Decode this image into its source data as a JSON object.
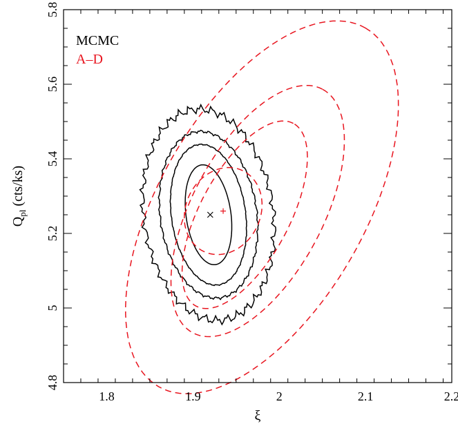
{
  "chart_data": {
    "type": "contour",
    "xlabel": "ξ",
    "ylabel": "Q",
    "ylabel_subscript": "pl",
    "ylabel_unit": "(cts/ks)",
    "xlim": [
      1.75,
      2.2
    ],
    "ylim": [
      4.8,
      5.8
    ],
    "x_ticks": [
      "1.8",
      "1.9",
      "2",
      "2.1",
      "2.2"
    ],
    "y_ticks": [
      "4.8",
      "5",
      "5.2",
      "5.4",
      "5.6",
      "5.8"
    ],
    "grid": false,
    "legend_position": "top-left",
    "series": [
      {
        "name": "MCMC",
        "color": "#000000",
        "style": "solid",
        "best_fit": {
          "x": 1.92,
          "y": 5.25,
          "marker": "x"
        },
        "contours": [
          {
            "cx": 1.918,
            "cy": 5.25,
            "rx": 0.026,
            "ry": 0.135,
            "angle_deg": 8,
            "jitter": 0
          },
          {
            "cx": 1.918,
            "cy": 5.25,
            "rx": 0.043,
            "ry": 0.19,
            "angle_deg": 8,
            "jitter": 0.12
          },
          {
            "cx": 1.918,
            "cy": 5.25,
            "rx": 0.056,
            "ry": 0.225,
            "angle_deg": 8,
            "jitter": 0.25
          },
          {
            "cx": 1.918,
            "cy": 5.25,
            "rx": 0.075,
            "ry": 0.285,
            "angle_deg": 8,
            "jitter": 0.6
          }
        ]
      },
      {
        "name": "A–D",
        "color": "#e8141e",
        "style": "dashed",
        "best_fit": {
          "x": 1.935,
          "y": 5.26,
          "marker": "+"
        },
        "contours": [
          {
            "cx": 1.935,
            "cy": 5.26,
            "rx": 0.052,
            "ry": 0.1,
            "angle_deg": 64,
            "jitter": 0
          },
          {
            "cx": 1.96,
            "cy": 5.25,
            "rx": 0.12,
            "ry": 0.12,
            "angle_deg": 62,
            "jitter": 0
          },
          {
            "cx": 1.975,
            "cy": 5.26,
            "rx": 0.16,
            "ry": 0.175,
            "angle_deg": 62,
            "jitter": 0
          },
          {
            "cx": 1.98,
            "cy": 5.27,
            "rx": 0.24,
            "ry": 0.275,
            "angle_deg": 60,
            "jitter": 0
          }
        ]
      }
    ]
  }
}
